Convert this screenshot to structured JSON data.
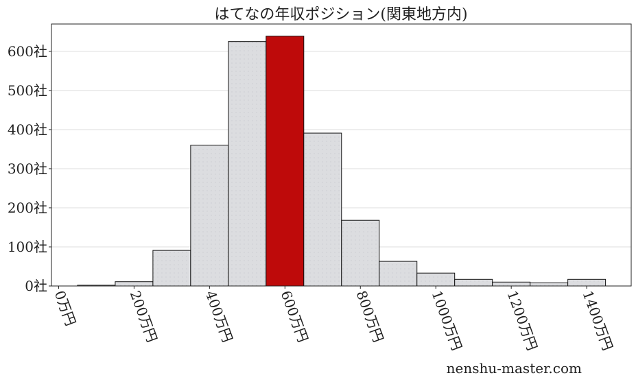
{
  "chart_data": {
    "type": "bar",
    "title": "はてなの年収ポジション(関東地方内)",
    "xlabel": "",
    "ylabel": "",
    "bin_width": 100,
    "bins": [
      100,
      200,
      300,
      400,
      500,
      600,
      700,
      800,
      900,
      1000,
      1100,
      1200,
      1300,
      1400
    ],
    "values": [
      2,
      11,
      91,
      360,
      625,
      639,
      391,
      168,
      63,
      33,
      17,
      10,
      8,
      17
    ],
    "highlight_bin": 600,
    "xlim": [
      -19,
      1518
    ],
    "ylim": [
      0,
      670
    ],
    "xticks": [
      0,
      200,
      400,
      600,
      800,
      1000,
      1200,
      1400
    ],
    "xtick_labels": [
      "0万円",
      "200万円",
      "400万円",
      "600万円",
      "800万円",
      "1000万円",
      "1200万円",
      "1400万円"
    ],
    "yticks": [
      0,
      100,
      200,
      300,
      400,
      500,
      600
    ],
    "ytick_labels": [
      "0社",
      "100社",
      "200社",
      "300社",
      "400社",
      "500社",
      "600社"
    ],
    "grid": "horizontal",
    "colors": {
      "bar": "#dcdde0",
      "highlight": "#be0a0a",
      "edge": "#111111",
      "grid": "#dddddd"
    }
  },
  "watermark": "nenshu-master.com"
}
